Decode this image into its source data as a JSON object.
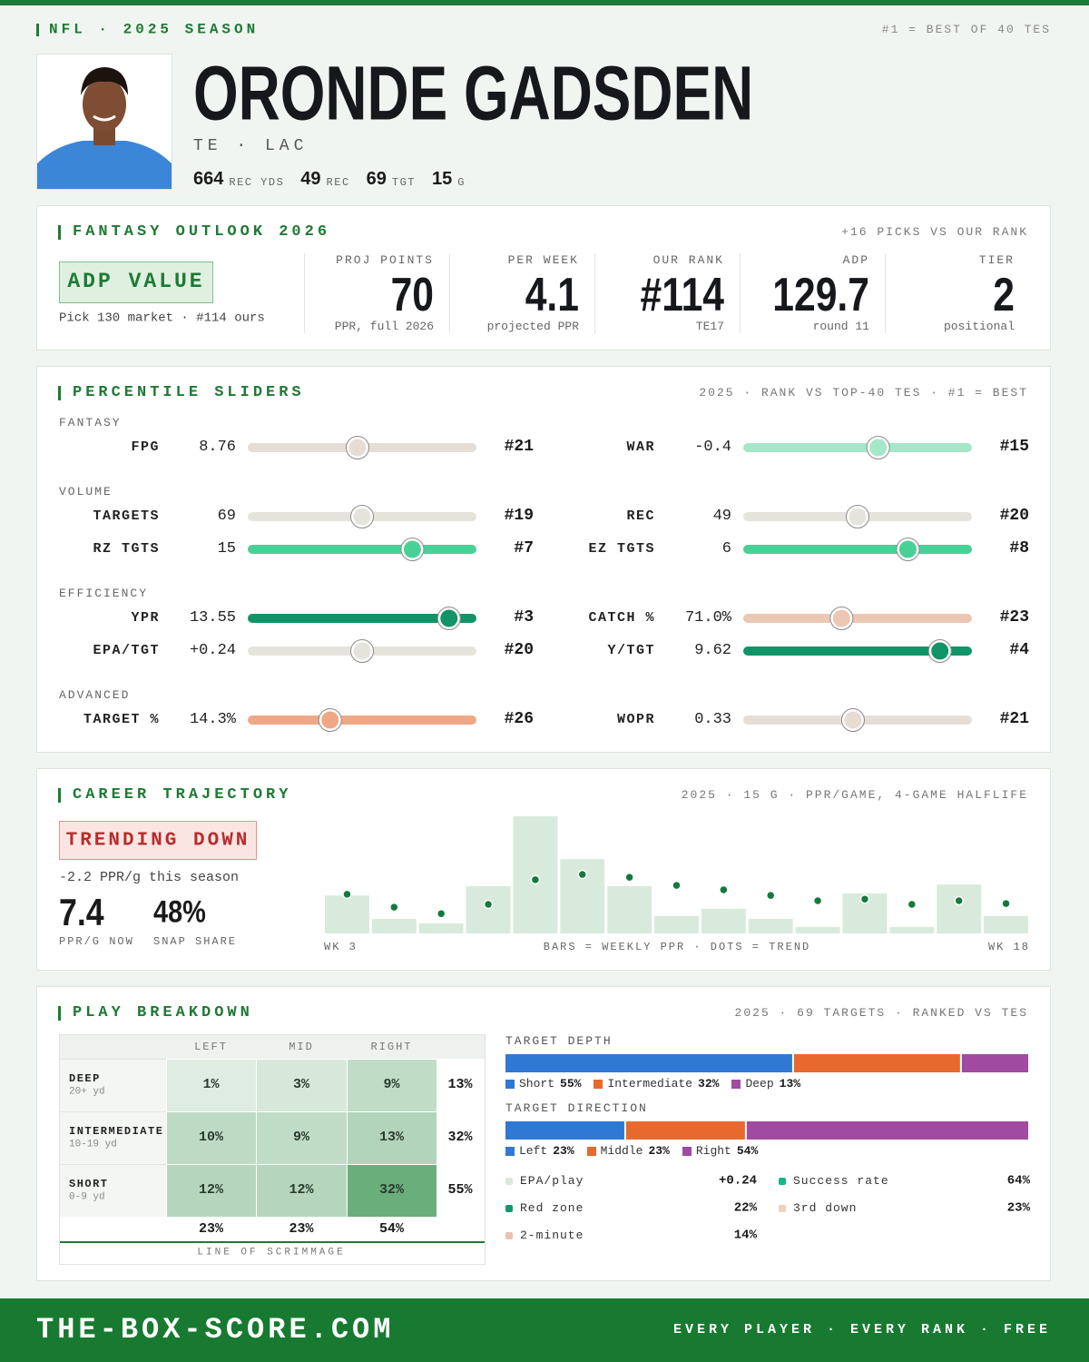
{
  "header": {
    "league": "NFL · 2025 SEASON",
    "note": "#1 = BEST OF 40 TES",
    "name": "ORONDE GADSDEN",
    "position": "TE · LAC",
    "stats": [
      {
        "value": "664",
        "label": "REC YDS"
      },
      {
        "value": "49",
        "label": "REC"
      },
      {
        "value": "69",
        "label": "TGT"
      },
      {
        "value": "15",
        "label": "G"
      }
    ]
  },
  "outlook": {
    "title": "FANTASY OUTLOOK 2026",
    "note": "+16 PICKS VS OUR RANK",
    "badge": "ADP VALUE",
    "badge_note": "Pick 130 market · #114 ours",
    "metrics": [
      {
        "label": "PROJ POINTS",
        "value": "70",
        "sub": "PPR, full 2026"
      },
      {
        "label": "PER WEEK",
        "value": "4.1",
        "sub": "projected PPR"
      },
      {
        "label": "OUR RANK",
        "value": "#114",
        "sub": "TE17"
      },
      {
        "label": "ADP",
        "value": "129.7",
        "sub": "round 11"
      },
      {
        "label": "TIER",
        "value": "2",
        "sub": "positional"
      }
    ]
  },
  "sliders": {
    "title": "PERCENTILE SLIDERS",
    "note": "2025 · RANK VS TOP-40 TES · #1 = BEST",
    "groups": [
      {
        "label": "FANTASY",
        "rows": [
          [
            {
              "label": "FPG",
              "value": "8.76",
              "rank": "#21",
              "percentile": 48,
              "color": "#e6ddd5"
            },
            {
              "label": "WAR",
              "value": "-0.4",
              "rank": "#15",
              "percentile": 59,
              "color": "#a6e6cb"
            }
          ]
        ]
      },
      {
        "label": "VOLUME",
        "rows": [
          [
            {
              "label": "TARGETS",
              "value": "69",
              "rank": "#19",
              "percentile": 50,
              "color": "#e4e4dd"
            },
            {
              "label": "REC",
              "value": "49",
              "rank": "#20",
              "percentile": 50,
              "color": "#e4e4dd"
            }
          ],
          [
            {
              "label": "RZ TGTS",
              "value": "15",
              "rank": "#7",
              "percentile": 72,
              "color": "#48d197"
            },
            {
              "label": "EZ TGTS",
              "value": "6",
              "rank": "#8",
              "percentile": 72,
              "color": "#48d197"
            }
          ]
        ]
      },
      {
        "label": "EFFICIENCY",
        "rows": [
          [
            {
              "label": "YPR",
              "value": "13.55",
              "rank": "#3",
              "percentile": 88,
              "color": "#119467"
            },
            {
              "label": "CATCH %",
              "value": "71.0%",
              "rank": "#23",
              "percentile": 43,
              "color": "#ecc7b3"
            }
          ],
          [
            {
              "label": "EPA/TGT",
              "value": "+0.24",
              "rank": "#20",
              "percentile": 50,
              "color": "#e4e4dd"
            },
            {
              "label": "Y/TGT",
              "value": "9.62",
              "rank": "#4",
              "percentile": 86,
              "color": "#119467"
            }
          ]
        ]
      },
      {
        "label": "ADVANCED",
        "rows": [
          [
            {
              "label": "TARGET %",
              "value": "14.3%",
              "rank": "#26",
              "percentile": 36,
              "color": "#efa886"
            },
            {
              "label": "WOPR",
              "value": "0.33",
              "rank": "#21",
              "percentile": 48,
              "color": "#e6ddd5"
            }
          ]
        ]
      }
    ]
  },
  "trajectory": {
    "title": "CAREER TRAJECTORY",
    "note": "2025 · 15 G · PPR/GAME, 4-GAME HALFLIFE",
    "badge": "TRENDING DOWN",
    "badge_note": "-2.2 PPR/g this season",
    "stats": [
      {
        "value": "7.4",
        "label": "PPR/G NOW"
      },
      {
        "value": "48%",
        "label": "SNAP SHARE"
      }
    ],
    "chart_data": {
      "type": "bar",
      "bars": [
        9.4,
        3.6,
        2.5,
        11.7,
        29.0,
        18.4,
        11.7,
        4.3,
        6.1,
        3.6,
        1.6,
        9.9,
        1.6,
        12.1,
        4.3
      ],
      "trend": [
        9.7,
        6.5,
        4.9,
        7.2,
        13.3,
        14.6,
        13.9,
        11.9,
        10.8,
        9.4,
        8.1,
        8.5,
        7.2,
        8.1,
        7.4
      ],
      "ylim": [
        0,
        29
      ],
      "bar_color": "#d8eadc",
      "dot_color": "#137a3d",
      "x_start_label": "WK 3",
      "x_end_label": "WK 18",
      "legend": "BARS = WEEKLY PPR · DOTS = TREND"
    }
  },
  "breakdown": {
    "title": "PLAY BREAKDOWN",
    "note": "2025 · 69 TARGETS · RANKED VS TES",
    "table": {
      "columns": [
        "LEFT",
        "MID",
        "RIGHT"
      ],
      "rows": [
        {
          "label": "DEEP",
          "sub": "20+ yd",
          "cells": [
            "1%",
            "3%",
            "9%"
          ],
          "total": "13%"
        },
        {
          "label": "INTERMEDIATE",
          "sub": "10-19 yd",
          "cells": [
            "10%",
            "9%",
            "13%"
          ],
          "total": "32%"
        },
        {
          "label": "SHORT",
          "sub": "0-9 yd",
          "cells": [
            "12%",
            "12%",
            "32%"
          ],
          "total": "55%"
        }
      ],
      "totals": [
        "23%",
        "23%",
        "54%"
      ],
      "footer": "LINE OF SCRIMMAGE"
    },
    "depth": {
      "title": "TARGET DEPTH",
      "segments": [
        {
          "name": "Short",
          "value": 55,
          "label": "55%",
          "color": "#2f78d4"
        },
        {
          "name": "Intermediate",
          "value": 32,
          "label": "32%",
          "color": "#e8692e"
        },
        {
          "name": "Deep",
          "value": 13,
          "label": "13%",
          "color": "#a04aa2"
        }
      ]
    },
    "direction": {
      "title": "TARGET DIRECTION",
      "segments": [
        {
          "name": "Left",
          "value": 23,
          "label": "23%",
          "color": "#2f78d4"
        },
        {
          "name": "Middle",
          "value": 23,
          "label": "23%",
          "color": "#e8692e"
        },
        {
          "name": "Right",
          "value": 54,
          "label": "54%",
          "color": "#a04aa2"
        }
      ]
    },
    "stats": [
      {
        "label": "EPA/play",
        "value": "+0.24",
        "color": "#d9e9dc"
      },
      {
        "label": "Success rate",
        "value": "64%",
        "color": "#14b885"
      },
      {
        "label": "Red zone",
        "value": "22%",
        "color": "#139a6a"
      },
      {
        "label": "3rd down",
        "value": "23%",
        "color": "#ecd0c0"
      },
      {
        "label": "2-minute",
        "value": "14%",
        "color": "#e8c3b0"
      }
    ]
  },
  "footer": {
    "site": "THE-BOX-SCORE.COM",
    "tagline": "EVERY PLAYER · EVERY RANK · FREE"
  }
}
